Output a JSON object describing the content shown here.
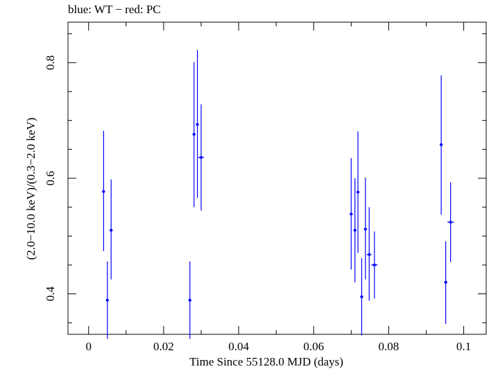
{
  "chart_data": {
    "type": "scatter",
    "title": "blue: WT − red: PC",
    "xlabel": "Time Since 55128.0 MJD (days)",
    "ylabel": "(2.0−10.0 keV)/(0.3−2.0 keV)",
    "xlim": [
      -0.0055,
      0.106
    ],
    "ylim": [
      0.33,
      0.87
    ],
    "xticks": [
      0,
      0.02,
      0.04,
      0.06,
      0.08,
      0.1
    ],
    "xtick_labels": [
      "0",
      "0.02",
      "0.04",
      "0.06",
      "0.08",
      "0.1"
    ],
    "yticks": [
      0.4,
      0.6,
      0.8
    ],
    "ytick_labels": [
      "0.4",
      "0.6",
      "0.8"
    ],
    "grid": false,
    "series": [
      {
        "color": "#0000ff",
        "points": [
          {
            "x": 0.004,
            "y": 0.577,
            "xerr": 0.0004,
            "ylow": 0.474,
            "yhigh": 0.682
          },
          {
            "x": 0.005,
            "y": 0.389,
            "xerr": 0.0004,
            "ylow": 0.322,
            "yhigh": 0.456
          },
          {
            "x": 0.006,
            "y": 0.51,
            "xerr": 0.0004,
            "ylow": 0.425,
            "yhigh": 0.598
          },
          {
            "x": 0.027,
            "y": 0.389,
            "xerr": 0.0004,
            "ylow": 0.322,
            "yhigh": 0.456
          },
          {
            "x": 0.0281,
            "y": 0.676,
            "xerr": 0.0004,
            "ylow": 0.55,
            "yhigh": 0.801
          },
          {
            "x": 0.029,
            "y": 0.693,
            "xerr": 0.0004,
            "ylow": 0.566,
            "yhigh": 0.822
          },
          {
            "x": 0.03,
            "y": 0.636,
            "xerr": 0.0007,
            "ylow": 0.544,
            "yhigh": 0.728
          },
          {
            "x": 0.07,
            "y": 0.538,
            "xerr": 0.0004,
            "ylow": 0.442,
            "yhigh": 0.635
          },
          {
            "x": 0.071,
            "y": 0.51,
            "xerr": 0.0004,
            "ylow": 0.42,
            "yhigh": 0.6
          },
          {
            "x": 0.0718,
            "y": 0.576,
            "xerr": 0.0004,
            "ylow": 0.471,
            "yhigh": 0.681
          },
          {
            "x": 0.0728,
            "y": 0.395,
            "xerr": 0.0004,
            "ylow": 0.328,
            "yhigh": 0.462
          },
          {
            "x": 0.0738,
            "y": 0.512,
            "xerr": 0.0004,
            "ylow": 0.425,
            "yhigh": 0.601
          },
          {
            "x": 0.0748,
            "y": 0.468,
            "xerr": 0.0006,
            "ylow": 0.388,
            "yhigh": 0.55
          },
          {
            "x": 0.0762,
            "y": 0.45,
            "xerr": 0.0008,
            "ylow": 0.392,
            "yhigh": 0.508
          },
          {
            "x": 0.094,
            "y": 0.658,
            "xerr": 0.0004,
            "ylow": 0.537,
            "yhigh": 0.778
          },
          {
            "x": 0.0952,
            "y": 0.42,
            "xerr": 0.0004,
            "ylow": 0.348,
            "yhigh": 0.491
          },
          {
            "x": 0.0965,
            "y": 0.524,
            "xerr": 0.0008,
            "ylow": 0.455,
            "yhigh": 0.593
          }
        ]
      }
    ]
  }
}
